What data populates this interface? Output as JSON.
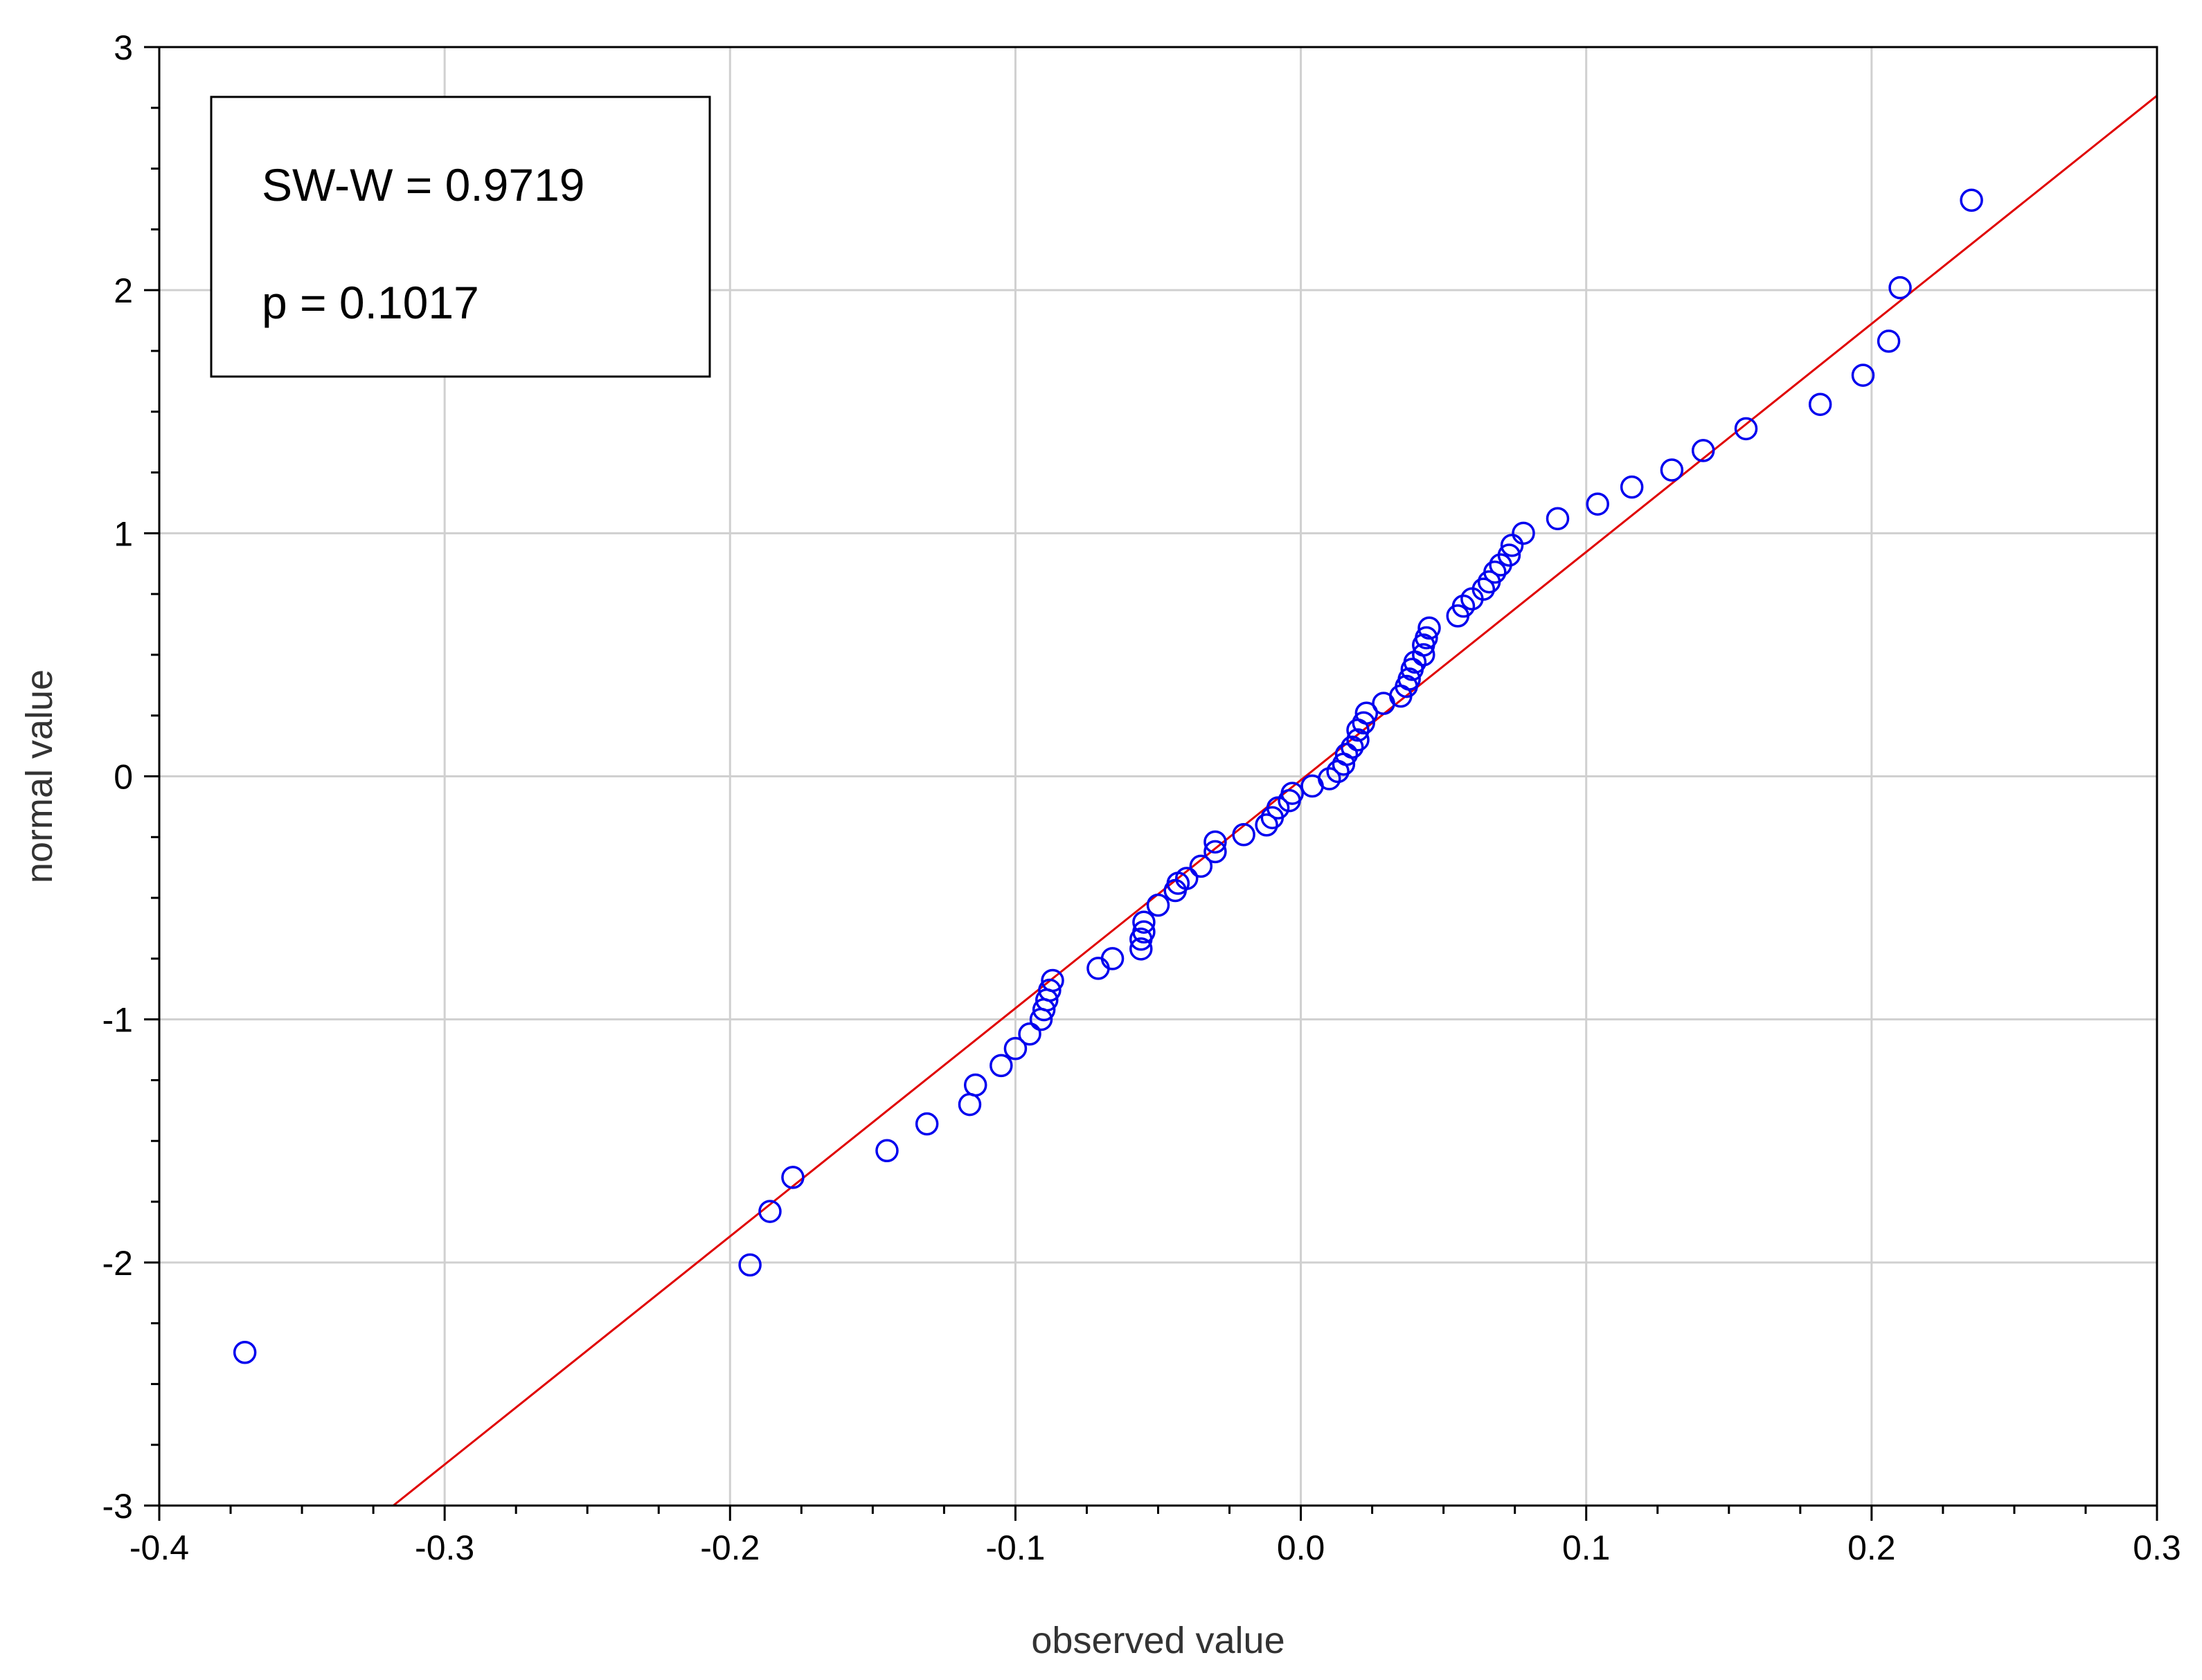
{
  "chart_data": {
    "type": "scatter",
    "xlabel": "observed value",
    "ylabel": "normal value",
    "xlim": [
      -0.4,
      0.3
    ],
    "ylim": [
      -3,
      3
    ],
    "xticks": [
      -0.4,
      -0.3,
      -0.2,
      -0.1,
      0.0,
      0.1,
      0.2,
      0.3
    ],
    "xtick_labels": [
      "-0.4",
      "-0.3",
      "-0.2",
      "-0.1",
      "0.0",
      "0.1",
      "0.2",
      "0.3"
    ],
    "yticks": [
      -3,
      -2,
      -1,
      0,
      1,
      2,
      3
    ],
    "ytick_labels": [
      "-3",
      "-2",
      "-1",
      "0",
      "1",
      "2",
      "3"
    ],
    "grid": true,
    "annotation": {
      "lines": [
        "SW-W = 0.9719",
        "p = 0.1017"
      ],
      "placement": "top-left"
    },
    "reference_line": {
      "points": [
        [
          -0.318,
          -3.0
        ],
        [
          0.3,
          2.8
        ]
      ],
      "color": "#e00000"
    },
    "series": [
      {
        "color": "#0000ee",
        "marker": "circle-open",
        "points": [
          [
            -0.37,
            -2.37
          ],
          [
            -0.193,
            -2.01
          ],
          [
            -0.186,
            -1.79
          ],
          [
            -0.178,
            -1.65
          ],
          [
            -0.145,
            -1.54
          ],
          [
            -0.131,
            -1.43
          ],
          [
            -0.116,
            -1.35
          ],
          [
            -0.114,
            -1.27
          ],
          [
            -0.105,
            -1.19
          ],
          [
            -0.1,
            -1.12
          ],
          [
            -0.095,
            -1.06
          ],
          [
            -0.091,
            -1.0
          ],
          [
            -0.09,
            -0.96
          ],
          [
            -0.089,
            -0.92
          ],
          [
            -0.088,
            -0.88
          ],
          [
            -0.087,
            -0.84
          ],
          [
            -0.071,
            -0.79
          ],
          [
            -0.066,
            -0.75
          ],
          [
            -0.056,
            -0.71
          ],
          [
            -0.056,
            -0.67
          ],
          [
            -0.055,
            -0.64
          ],
          [
            -0.055,
            -0.6
          ],
          [
            -0.05,
            -0.53
          ],
          [
            -0.044,
            -0.47
          ],
          [
            -0.043,
            -0.44
          ],
          [
            -0.04,
            -0.42
          ],
          [
            -0.035,
            -0.37
          ],
          [
            -0.03,
            -0.31
          ],
          [
            -0.03,
            -0.27
          ],
          [
            -0.02,
            -0.24
          ],
          [
            -0.012,
            -0.2
          ],
          [
            -0.01,
            -0.17
          ],
          [
            -0.008,
            -0.13
          ],
          [
            -0.004,
            -0.1
          ],
          [
            -0.003,
            -0.07
          ],
          [
            0.004,
            -0.04
          ],
          [
            0.01,
            -0.01
          ],
          [
            0.013,
            0.02
          ],
          [
            0.015,
            0.05
          ],
          [
            0.016,
            0.09
          ],
          [
            0.018,
            0.12
          ],
          [
            0.02,
            0.15
          ],
          [
            0.02,
            0.19
          ],
          [
            0.022,
            0.22
          ],
          [
            0.023,
            0.26
          ],
          [
            0.029,
            0.3
          ],
          [
            0.035,
            0.33
          ],
          [
            0.037,
            0.37
          ],
          [
            0.038,
            0.4
          ],
          [
            0.039,
            0.44
          ],
          [
            0.04,
            0.47
          ],
          [
            0.043,
            0.5
          ],
          [
            0.043,
            0.54
          ],
          [
            0.044,
            0.57
          ],
          [
            0.045,
            0.61
          ],
          [
            0.055,
            0.66
          ],
          [
            0.057,
            0.7
          ],
          [
            0.06,
            0.73
          ],
          [
            0.064,
            0.77
          ],
          [
            0.066,
            0.8
          ],
          [
            0.068,
            0.84
          ],
          [
            0.07,
            0.87
          ],
          [
            0.073,
            0.91
          ],
          [
            0.074,
            0.95
          ],
          [
            0.078,
            1.0
          ],
          [
            0.09,
            1.06
          ],
          [
            0.104,
            1.12
          ],
          [
            0.116,
            1.19
          ],
          [
            0.13,
            1.26
          ],
          [
            0.141,
            1.34
          ],
          [
            0.156,
            1.43
          ],
          [
            0.182,
            1.53
          ],
          [
            0.197,
            1.65
          ],
          [
            0.206,
            1.79
          ],
          [
            0.21,
            2.01
          ],
          [
            0.235,
            2.37
          ]
        ]
      }
    ]
  }
}
